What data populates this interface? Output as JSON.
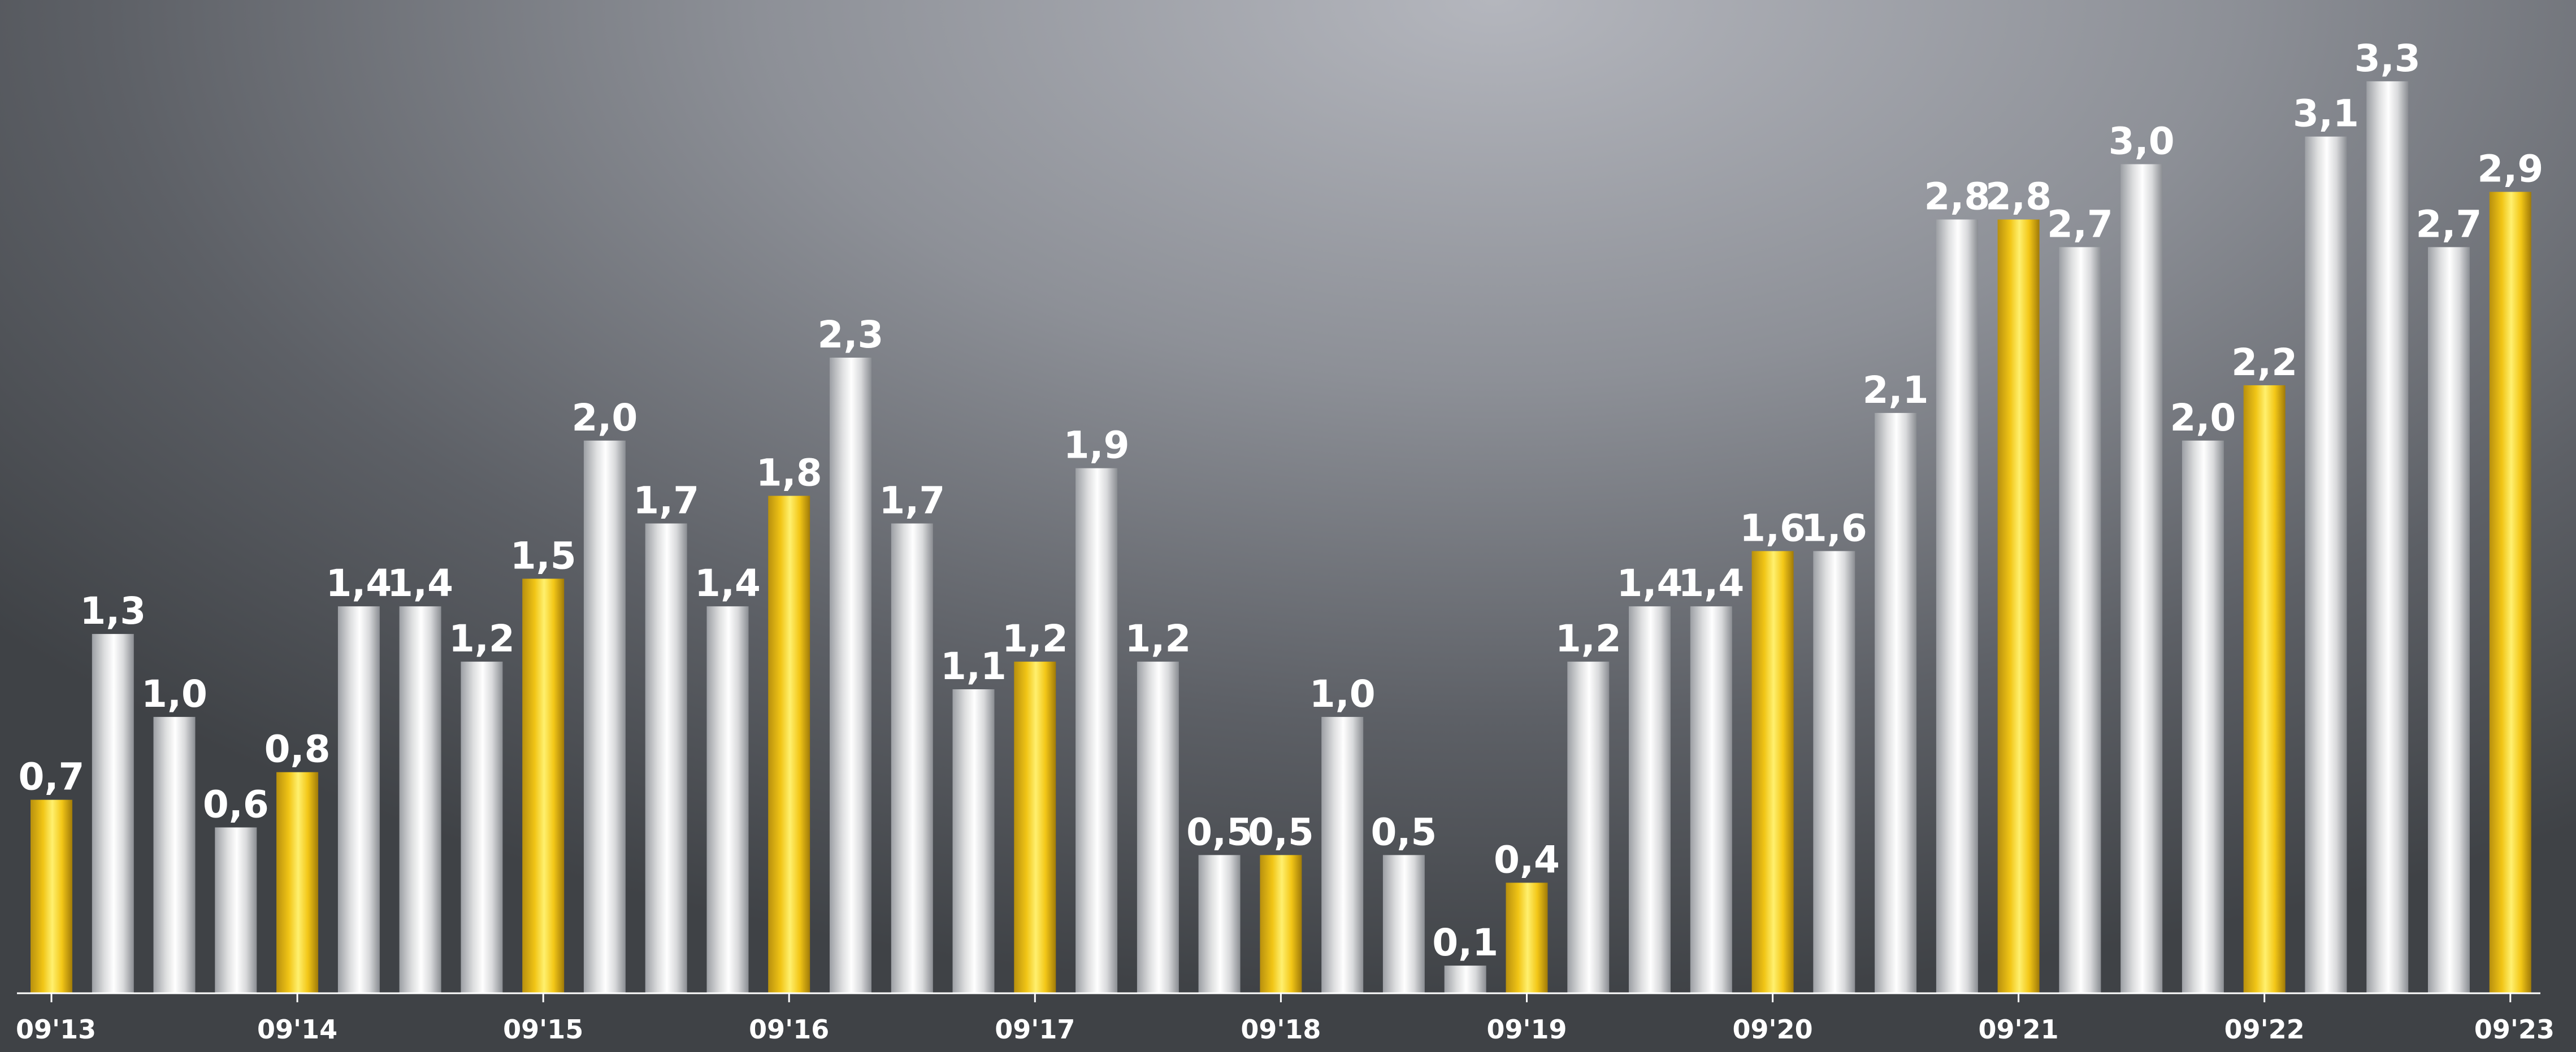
{
  "chart_data": {
    "type": "bar",
    "title": "",
    "xlabel": "",
    "ylabel": "",
    "ylim": [
      0,
      3.4
    ],
    "grid": false,
    "legend": "none",
    "categories": [
      "09'13",
      "",
      "",
      "",
      "09'14",
      "",
      "",
      "",
      "09'15",
      "",
      "",
      "",
      "09'16",
      "",
      "",
      "",
      "09'17",
      "",
      "",
      "",
      "09'18",
      "",
      "",
      "",
      "09'19",
      "",
      "",
      "",
      "09'20",
      "",
      "",
      "",
      "09'21",
      "",
      "",
      "",
      "09'22",
      "",
      "",
      "",
      "09'23"
    ],
    "values": [
      0.7,
      1.3,
      1.0,
      0.6,
      0.8,
      1.4,
      1.4,
      1.2,
      1.5,
      2.0,
      1.7,
      1.4,
      1.8,
      2.3,
      1.7,
      1.1,
      1.2,
      1.9,
      1.2,
      0.5,
      0.5,
      1.0,
      0.5,
      0.1,
      0.4,
      1.2,
      1.4,
      1.4,
      1.6,
      1.6,
      2.1,
      2.8,
      2.8,
      2.7,
      3.0,
      2.0,
      2.2,
      3.1,
      3.3,
      2.7,
      2.9
    ],
    "value_labels": [
      "0,7",
      "1,3",
      "1,0",
      "0,6",
      "0,8",
      "1,4",
      "1,4",
      "1,2",
      "1,5",
      "2,0",
      "1,7",
      "1,4",
      "1,8",
      "2,3",
      "1,7",
      "1,1",
      "1,2",
      "1,9",
      "1,2",
      "0,5",
      "0,5",
      "1,0",
      "0,5",
      "0,1",
      "0,4",
      "1,2",
      "1,4",
      "1,4",
      "1,6",
      "1,6",
      "2,1",
      "2,8",
      "2,8",
      "2,7",
      "3,0",
      "2,0",
      "2,2",
      "3,1",
      "3,3",
      "2,7",
      "2,9"
    ],
    "highlight_every": 4,
    "colors": {
      "highlight": [
        "#b8900e",
        "#f1c516",
        "#fff06e",
        "#f3c717",
        "#a07a08"
      ],
      "normal": [
        "#9c9fa4",
        "#dddedf",
        "#ffffff",
        "#d8d9db",
        "#8a8d92"
      ],
      "axis": "#ffffff",
      "label": "#ffffff"
    }
  }
}
